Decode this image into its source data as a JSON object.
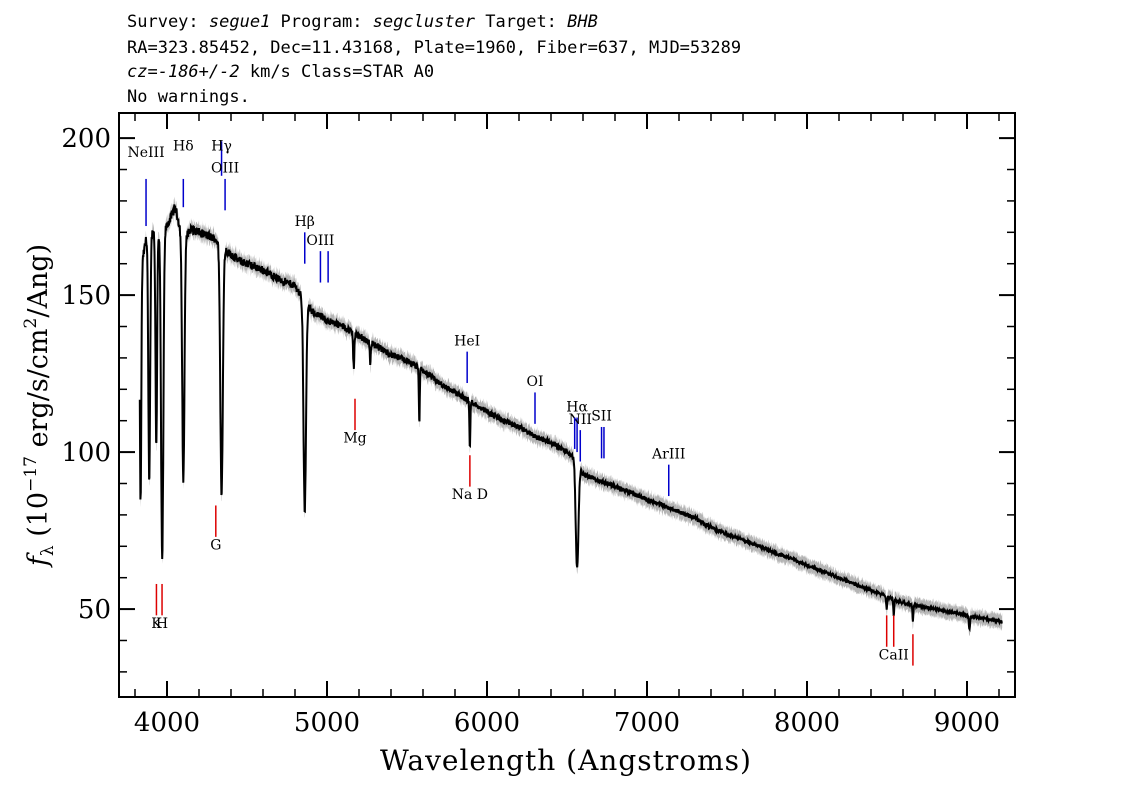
{
  "header": {
    "line1": {
      "survey_label": "Survey: ",
      "survey": "segue1",
      "program_label": " Program: ",
      "program": "segcluster",
      "target_label": " Target: ",
      "target": "BHB"
    },
    "line2": "RA=323.85452, Dec=11.43168, Plate=1960, Fiber=637, MJD=53289",
    "line3": {
      "cz_label": "cz=",
      "cz": "-186+/-2",
      "rest": " km/s Class=STAR A0"
    },
    "line4": "No warnings."
  },
  "chart_data": {
    "type": "line",
    "title": "",
    "xlabel": "Wavelength (Angstroms)",
    "ylabel": "f_λ (10^-17 erg/s/cm^2/Ang)",
    "xlim": [
      3700,
      9300
    ],
    "ylim": [
      22,
      208
    ],
    "x_ticks": [
      4000,
      5000,
      6000,
      7000,
      8000,
      9000
    ],
    "y_ticks": [
      50,
      100,
      150,
      200
    ],
    "colors": {
      "flux": "#000000",
      "error": "#b4b4b4",
      "emission": "#0000cc",
      "absorption": "#dd0000"
    },
    "continuum": [
      [
        3830,
        150
      ],
      [
        3850,
        162
      ],
      [
        3870,
        168
      ],
      [
        3900,
        170
      ],
      [
        3950,
        170
      ],
      [
        4000,
        172
      ],
      [
        4050,
        178
      ],
      [
        4100,
        168
      ],
      [
        4150,
        171
      ],
      [
        4200,
        170
      ],
      [
        4250,
        169
      ],
      [
        4300,
        168
      ],
      [
        4350,
        165
      ],
      [
        4400,
        163
      ],
      [
        4450,
        161
      ],
      [
        4500,
        160
      ],
      [
        4550,
        159
      ],
      [
        4600,
        158
      ],
      [
        4700,
        155
      ],
      [
        4800,
        153
      ],
      [
        4850,
        149
      ],
      [
        4900,
        145
      ],
      [
        5000,
        142
      ],
      [
        5100,
        140
      ],
      [
        5200,
        137
      ],
      [
        5300,
        134
      ],
      [
        5400,
        131
      ],
      [
        5500,
        129
      ],
      [
        5600,
        126
      ],
      [
        5700,
        122
      ],
      [
        5800,
        119
      ],
      [
        5900,
        116
      ],
      [
        6000,
        113
      ],
      [
        6100,
        110
      ],
      [
        6200,
        108
      ],
      [
        6300,
        105
      ],
      [
        6400,
        103
      ],
      [
        6500,
        100
      ],
      [
        6550,
        98
      ],
      [
        6600,
        93
      ],
      [
        6700,
        91
      ],
      [
        6800,
        89
      ],
      [
        6900,
        87
      ],
      [
        7000,
        85
      ],
      [
        7100,
        83
      ],
      [
        7200,
        81
      ],
      [
        7300,
        79
      ],
      [
        7400,
        76
      ],
      [
        7500,
        74
      ],
      [
        7600,
        72
      ],
      [
        7700,
        70
      ],
      [
        7800,
        68
      ],
      [
        7900,
        66
      ],
      [
        8000,
        64
      ],
      [
        8100,
        62
      ],
      [
        8200,
        60
      ],
      [
        8300,
        58
      ],
      [
        8400,
        56
      ],
      [
        8500,
        54
      ],
      [
        8600,
        52
      ],
      [
        8700,
        51
      ],
      [
        8800,
        50
      ],
      [
        8900,
        49
      ],
      [
        9000,
        48
      ],
      [
        9100,
        47
      ],
      [
        9220,
        46
      ]
    ],
    "absorption_features": [
      {
        "center": 3835,
        "depth": 0.45,
        "width": 6
      },
      {
        "center": 3889,
        "depth": 0.47,
        "width": 8
      },
      {
        "center": 3933,
        "depth": 0.4,
        "width": 7
      },
      {
        "center": 3970,
        "depth": 0.62,
        "width": 10
      },
      {
        "center": 4102,
        "depth": 0.46,
        "width": 10
      },
      {
        "center": 4341,
        "depth": 0.48,
        "width": 11
      },
      {
        "center": 4861,
        "depth": 0.45,
        "width": 11
      },
      {
        "center": 5167,
        "depth": 0.08,
        "width": 5
      },
      {
        "center": 5270,
        "depth": 0.05,
        "width": 4
      },
      {
        "center": 5577,
        "depth": 0.14,
        "width": 4
      },
      {
        "center": 5893,
        "depth": 0.13,
        "width": 4
      },
      {
        "center": 6563,
        "depth": 0.35,
        "width": 12
      },
      {
        "center": 8498,
        "depth": 0.07,
        "width": 4
      },
      {
        "center": 8542,
        "depth": 0.1,
        "width": 4
      },
      {
        "center": 8662,
        "depth": 0.1,
        "width": 4
      },
      {
        "center": 9015,
        "depth": 0.09,
        "width": 5
      }
    ],
    "line_markers": [
      {
        "label": "NeIII",
        "x": 3869,
        "y1": 172,
        "y2": 187,
        "text_y": 194,
        "color": "blue"
      },
      {
        "label": "Hδ",
        "x": 4102,
        "y1": 178,
        "y2": 187,
        "text_y": 196,
        "color": "blue"
      },
      {
        "label": "Hγ",
        "x": 4341,
        "y1": 188,
        "y2": 199,
        "text_y": 196,
        "color": "blue"
      },
      {
        "label": "OIII",
        "x": 4363,
        "y1": 177,
        "y2": 187,
        "text_y": 189,
        "color": "blue"
      },
      {
        "label": "Hβ",
        "x": 4861,
        "y1": 160,
        "y2": 170,
        "text_y": 172,
        "color": "blue"
      },
      {
        "label": "OIII",
        "x": 4959,
        "y1": 154,
        "y2": 164,
        "text_y": 166,
        "color": "blue"
      },
      {
        "label": "",
        "x": 5007,
        "y1": 154,
        "y2": 164,
        "text_y": 0,
        "color": "blue"
      },
      {
        "label": "HeI",
        "x": 5876,
        "y1": 122,
        "y2": 132,
        "text_y": 134,
        "color": "blue"
      },
      {
        "label": "OI",
        "x": 6300,
        "y1": 109,
        "y2": 119,
        "text_y": 121,
        "color": "blue"
      },
      {
        "label": "Hα",
        "x": 6563,
        "y1": 100,
        "y2": 111,
        "text_y": 113,
        "color": "blue"
      },
      {
        "label": "NII",
        "x": 6583,
        "y1": 97,
        "y2": 107,
        "text_y": 109,
        "color": "blue"
      },
      {
        "label": "NII",
        "x": 6548,
        "y1": 101,
        "y2": 111,
        "text_y": 0,
        "color": "blue"
      },
      {
        "label": "SII",
        "x": 6716,
        "y1": 98,
        "y2": 108,
        "text_y": 110,
        "color": "blue"
      },
      {
        "label": "",
        "x": 6731,
        "y1": 98,
        "y2": 108,
        "text_y": 0,
        "color": "blue"
      },
      {
        "label": "ArIII",
        "x": 7136,
        "y1": 86,
        "y2": 96,
        "text_y": 98,
        "color": "blue"
      },
      {
        "label": "Mg",
        "x": 5175,
        "y1": 117,
        "y2": 107,
        "text_y": 103,
        "color": "red"
      },
      {
        "label": "Na D",
        "x": 5893,
        "y1": 99,
        "y2": 89,
        "text_y": 85,
        "color": "red"
      },
      {
        "label": "G",
        "x": 4305,
        "y1": 83,
        "y2": 73,
        "text_y": 69,
        "color": "red"
      },
      {
        "label": "K",
        "x": 3934,
        "y1": 58,
        "y2": 48,
        "text_y": 44,
        "color": "red"
      },
      {
        "label": "H",
        "x": 3969,
        "y1": 58,
        "y2": 48,
        "text_y": 44,
        "color": "red"
      },
      {
        "label": "",
        "x": 8498,
        "y1": 48,
        "y2": 38,
        "text_y": 0,
        "color": "red"
      },
      {
        "label": "CaII",
        "x": 8542,
        "y1": 48,
        "y2": 38,
        "text_y": 34,
        "color": "red"
      },
      {
        "label": "",
        "x": 8662,
        "y1": 42,
        "y2": 32,
        "text_y": 0,
        "color": "red"
      }
    ]
  }
}
